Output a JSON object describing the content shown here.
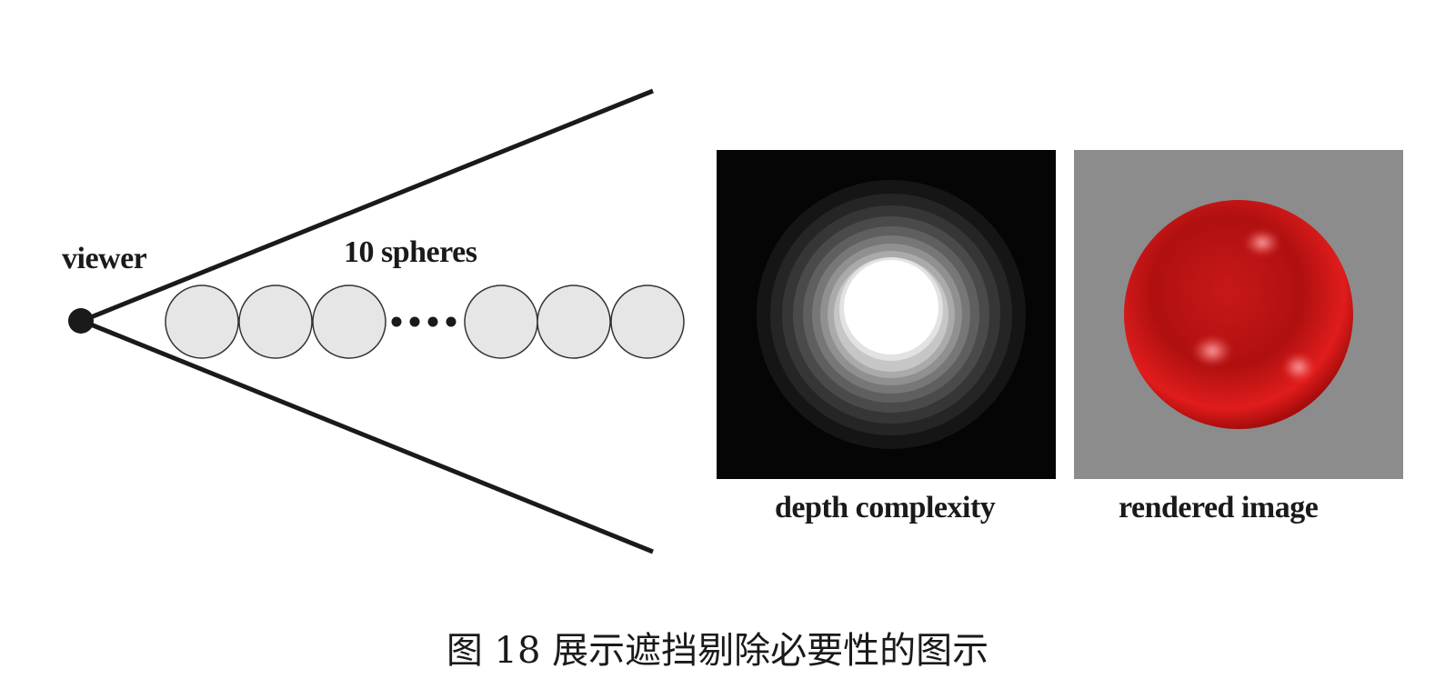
{
  "labels": {
    "viewer": "viewer",
    "spheres": "10 spheres",
    "depth_complexity": "depth complexity",
    "rendered_image": "rendered image"
  },
  "caption": "图 18  展示遮挡剔除必要性的图示",
  "colors": {
    "line": "#1a1a1a",
    "sphere_fill": "#e6e6e6",
    "sphere_stroke": "#333333",
    "depth_bg": "#050505",
    "render_bg": "#8c8c8c",
    "sphere_red": "#cc1414"
  }
}
